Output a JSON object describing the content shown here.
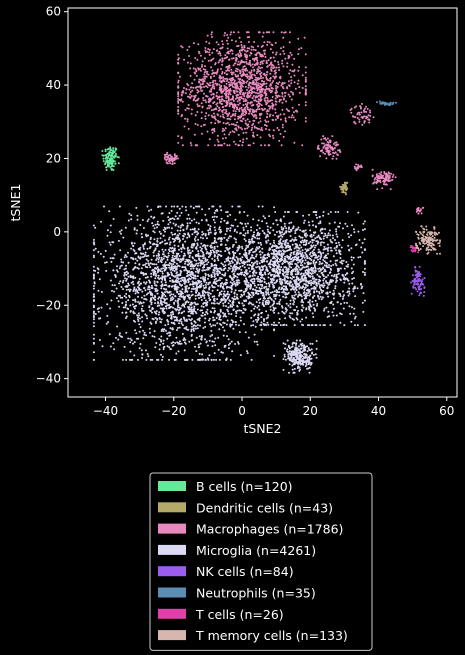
{
  "chart_data": {
    "type": "scatter",
    "title": "",
    "xlabel": "tSNE2",
    "ylabel": "tSNE1",
    "xlim": [
      -51,
      63
    ],
    "ylim": [
      -45,
      61
    ],
    "xticks": [
      -40,
      -20,
      0,
      20,
      40,
      60
    ],
    "yticks": [
      -40,
      -20,
      0,
      20,
      40,
      60
    ],
    "grid": false,
    "background": "#000000",
    "legend_position": "below-center",
    "series": [
      {
        "label": "B cells (n=120)",
        "color": "#66e89a",
        "n": 120,
        "clusters": [
          {
            "cx": -38.5,
            "cy": 20,
            "sx": 1.1,
            "sy": 1.8
          }
        ]
      },
      {
        "label": "Dendritic cells (n=43)",
        "color": "#b5a96a",
        "n": 43,
        "clusters": [
          {
            "cx": 30,
            "cy": 12,
            "sx": 0.6,
            "sy": 1.0
          }
        ]
      },
      {
        "label": "Macrophages (n=1786)",
        "color": "#e88ac0",
        "n": 1786,
        "clusters": [
          {
            "cx": 0,
            "cy": 39,
            "sx": 8.5,
            "sy": 7.0,
            "w": 0.82
          },
          {
            "cx": -21,
            "cy": 20,
            "sx": 1.0,
            "sy": 0.7,
            "w": 0.03
          },
          {
            "cx": 25.5,
            "cy": 23,
            "sx": 1.5,
            "sy": 1.4,
            "w": 0.05
          },
          {
            "cx": 35,
            "cy": 32,
            "sx": 1.6,
            "sy": 1.3,
            "w": 0.03
          },
          {
            "cx": 41.5,
            "cy": 14.5,
            "sx": 1.6,
            "sy": 1.3,
            "w": 0.05
          },
          {
            "cx": 34,
            "cy": 17.5,
            "sx": 0.5,
            "sy": 0.4,
            "w": 0.01
          },
          {
            "cx": 52,
            "cy": 6,
            "sx": 0.5,
            "sy": 0.5,
            "w": 0.01
          }
        ]
      },
      {
        "label": "Microglia (n=4261)",
        "color": "#dad8f2",
        "n": 4261,
        "clusters": [
          {
            "cx": -17,
            "cy": -14,
            "sx": 12.0,
            "sy": 9.5,
            "w": 0.52
          },
          {
            "cx": 14,
            "cy": -10,
            "sx": 10.0,
            "sy": 7.0,
            "w": 0.42
          },
          {
            "cx": 17,
            "cy": -34,
            "sx": 2.2,
            "sy": 2.0,
            "w": 0.06
          }
        ]
      },
      {
        "label": "NK cells (n=84)",
        "color": "#9b5cf0",
        "n": 84,
        "clusters": [
          {
            "cx": 51.5,
            "cy": -13.5,
            "sx": 0.9,
            "sy": 1.8
          }
        ]
      },
      {
        "label": "Neutrophils (n=35)",
        "color": "#5b8db5",
        "n": 35,
        "clusters": [
          {
            "cx": 42,
            "cy": 35,
            "sx": 1.4,
            "sy": 0.25
          }
        ]
      },
      {
        "label": "T cells (n=26)",
        "color": "#e040a8",
        "n": 26,
        "clusters": [
          {
            "cx": 50.5,
            "cy": -4.5,
            "sx": 0.5,
            "sy": 0.5
          }
        ]
      },
      {
        "label": "T memory cells (n=133)",
        "color": "#d6b6ae",
        "n": 133,
        "clusters": [
          {
            "cx": 54.5,
            "cy": -2,
            "sx": 1.6,
            "sy": 1.8
          }
        ]
      }
    ]
  }
}
